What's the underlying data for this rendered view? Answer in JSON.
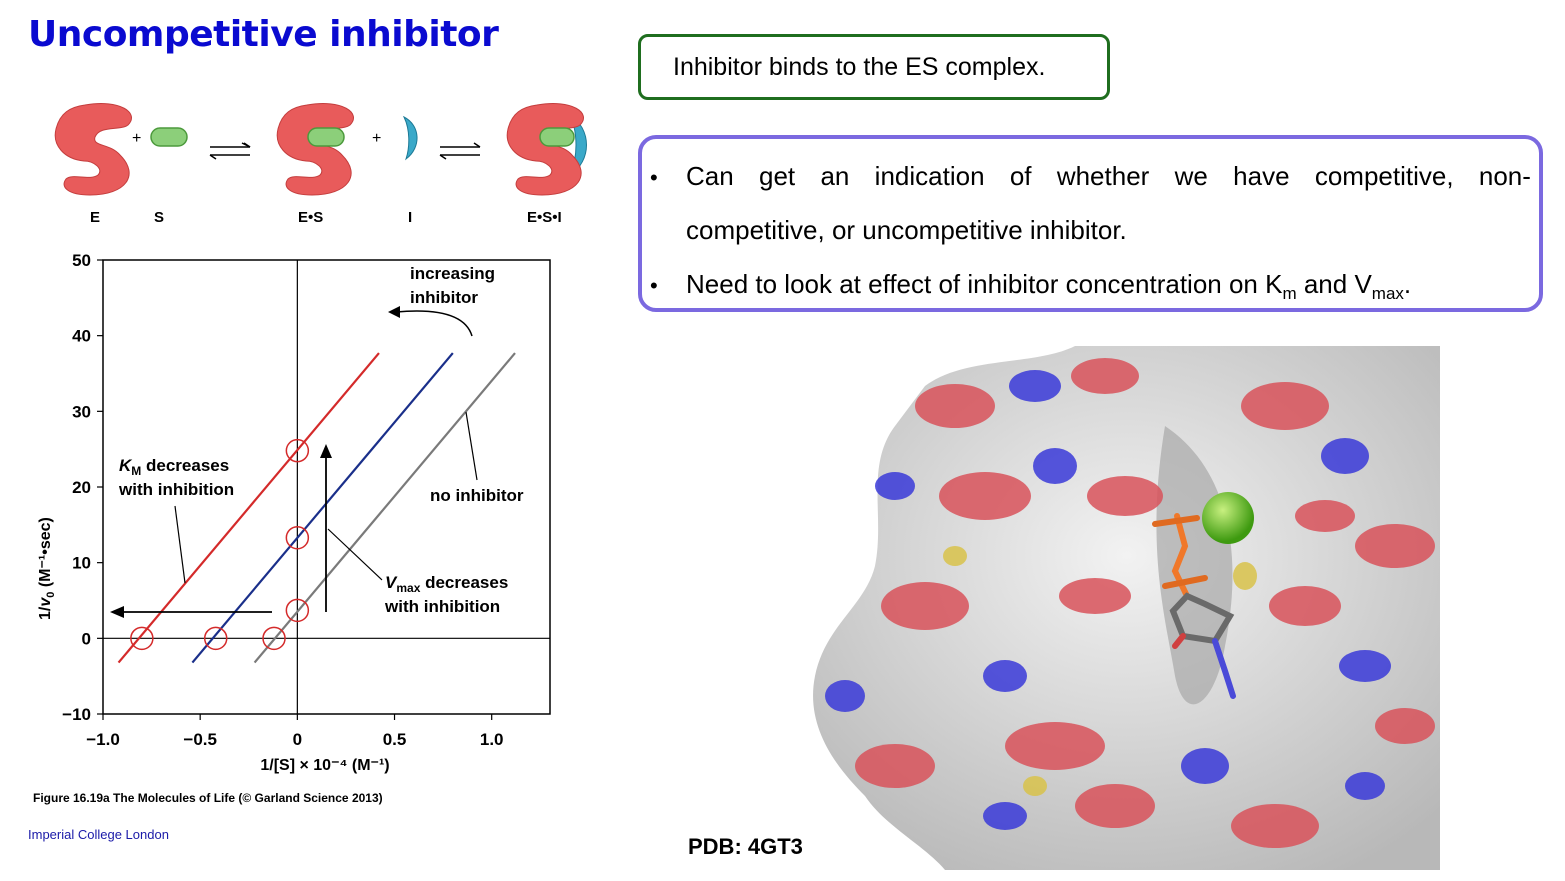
{
  "slide": {
    "title": "Uncompetitive inhibitor",
    "box1_text": "Inhibitor binds to the ES complex.",
    "bullet1_words": [
      "Can",
      "get",
      "an",
      "indication",
      "of",
      "whether",
      "we",
      "have",
      "competitive,",
      "non-"
    ],
    "bullet1_line2": "competitive, or uncompetitive inhibitor.",
    "bullet2_pre": "Need to look at effect of inhibitor concentration on K",
    "bullet2_sub1": "m",
    "bullet2_mid": " and V",
    "bullet2_sub2": "max",
    "bullet2_end": ".",
    "bullet_glyph": "•",
    "figure_caption": "Figure 16.19a  The Molecules of Life (© Garland Science 2013)",
    "footer": "Imperial College London",
    "pdb": "PDB: 4GT3"
  },
  "scheme": {
    "labels": [
      "E",
      "S",
      "E•S",
      "I",
      "E•S•I"
    ],
    "plus": "+",
    "colors": {
      "enzyme": "#e85b5b",
      "substrate": "#8ccf7a",
      "inhibitor": "#3aa9c9"
    }
  },
  "chart_data": {
    "type": "line",
    "xlabel": "1/[S] × 10⁻⁴ (M⁻¹)",
    "ylabel_parts": [
      "1/",
      "v",
      "0",
      " (M⁻¹•sec)"
    ],
    "xlim": [
      -1.0,
      1.3
    ],
    "ylim": [
      -10,
      50
    ],
    "x_ticks": [
      -1.0,
      -0.5,
      0,
      0.5,
      1.0
    ],
    "x_tick_labels": [
      "−1.0",
      "−0.5",
      "0",
      "0.5",
      "1.0"
    ],
    "y_ticks": [
      -10,
      0,
      10,
      20,
      30,
      40,
      50
    ],
    "y_tick_labels": [
      "−10",
      "0",
      "10",
      "20",
      "30",
      "40",
      "50"
    ],
    "series": [
      {
        "name": "",
        "color": "#d42a2a",
        "x": [
          -0.92,
          0.42
        ],
        "y": [
          -3.2,
          37.7
        ],
        "x_intercept": -0.8,
        "y_intercept": 24.8
      },
      {
        "name": "",
        "color": "#1a2f8a",
        "x": [
          -0.54,
          0.8
        ],
        "y": [
          -3.2,
          37.7
        ],
        "x_intercept": -0.42,
        "y_intercept": 13.3
      },
      {
        "name": "no inhibitor",
        "color": "#7a7a7a",
        "x": [
          -0.22,
          1.12
        ],
        "y": [
          -3.2,
          37.7
        ],
        "x_intercept": -0.12,
        "y_intercept": 3.7
      }
    ],
    "annotations": {
      "increasing_1": "increasing",
      "increasing_2": "inhibitor",
      "no_inhibitor": "no inhibitor",
      "km_K": "K",
      "km_sub": "M",
      "km_rest": " decreases",
      "km_line2": "with inhibition",
      "vmax_V": "V",
      "vmax_sub": "max",
      "vmax_rest": " decreases",
      "vmax_line2": "with inhibition"
    }
  },
  "protein_colors": {
    "surface": "#e6e6e6",
    "oxygen": "#d8525a",
    "nitrogen": "#3a3ad8",
    "sulfur": "#d8c24a",
    "ion": "#66cc22",
    "phosphate": "#f0782a"
  }
}
